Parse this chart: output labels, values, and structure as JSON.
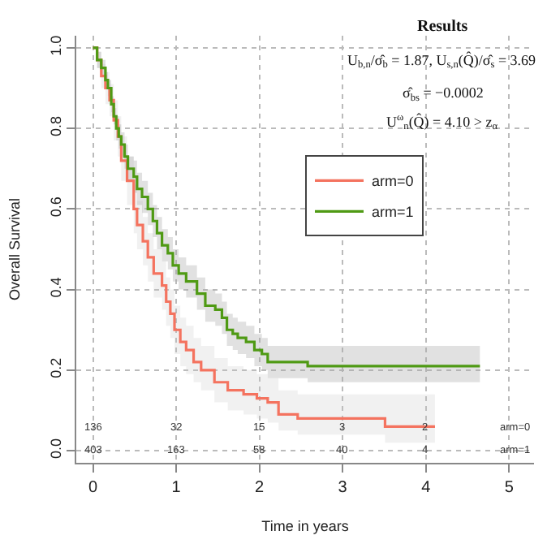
{
  "chart_data": {
    "type": "step",
    "xlabel": "Time in years",
    "ylabel": "Overall Survival",
    "xlim": [
      -0.2,
      5.3
    ],
    "xticks": [
      0,
      1,
      2,
      3,
      4,
      5
    ],
    "ylim": [
      -0.03,
      1.03
    ],
    "yticks": [
      {
        "value": 0,
        "label": "0.0"
      },
      0.2,
      0.4,
      0.6,
      0.8,
      {
        "value": 1,
        "label": "1.0"
      }
    ],
    "grid": true,
    "legend": "top right",
    "line_style": "solid",
    "marker": "none",
    "series": [
      {
        "name": "arm=0",
        "color": "#f4735f",
        "x": [
          0,
          0.05,
          0.1,
          0.15,
          0.2,
          0.25,
          0.3,
          0.34,
          0.41,
          0.49,
          0.53,
          0.6,
          0.66,
          0.73,
          0.83,
          0.88,
          0.93,
          0.98,
          1.05,
          1.12,
          1.21,
          1.3,
          1.46,
          1.62,
          1.81,
          1.97,
          2.1,
          2.23,
          2.46,
          3.51,
          4.11
        ],
        "values": [
          1.0,
          0.97,
          0.93,
          0.9,
          0.87,
          0.82,
          0.78,
          0.72,
          0.67,
          0.6,
          0.56,
          0.52,
          0.48,
          0.44,
          0.41,
          0.37,
          0.34,
          0.3,
          0.27,
          0.25,
          0.22,
          0.2,
          0.17,
          0.15,
          0.14,
          0.13,
          0.12,
          0.09,
          0.08,
          0.06,
          0.06
        ],
        "lower": [
          1.0,
          0.95,
          0.9,
          0.86,
          0.83,
          0.77,
          0.73,
          0.67,
          0.61,
          0.54,
          0.5,
          0.46,
          0.42,
          0.38,
          0.35,
          0.31,
          0.28,
          0.24,
          0.21,
          0.19,
          0.17,
          0.15,
          0.12,
          0.1,
          0.09,
          0.08,
          0.07,
          0.05,
          0.04,
          0.02,
          0.02
        ],
        "upper": [
          1.0,
          0.99,
          0.96,
          0.94,
          0.91,
          0.87,
          0.83,
          0.78,
          0.73,
          0.66,
          0.62,
          0.58,
          0.54,
          0.5,
          0.47,
          0.43,
          0.4,
          0.36,
          0.33,
          0.31,
          0.28,
          0.26,
          0.23,
          0.21,
          0.2,
          0.19,
          0.18,
          0.15,
          0.14,
          0.14,
          0.14
        ]
      },
      {
        "name": "arm=1",
        "color": "#4f9a14",
        "x": [
          0,
          0.05,
          0.1,
          0.15,
          0.18,
          0.22,
          0.25,
          0.28,
          0.31,
          0.34,
          0.38,
          0.42,
          0.49,
          0.53,
          0.59,
          0.66,
          0.72,
          0.77,
          0.83,
          0.9,
          0.96,
          1.03,
          1.12,
          1.25,
          1.35,
          1.47,
          1.55,
          1.61,
          1.68,
          1.74,
          1.84,
          1.94,
          2.03,
          2.1,
          2.58,
          4.65
        ],
        "values": [
          1.0,
          0.97,
          0.95,
          0.92,
          0.9,
          0.86,
          0.83,
          0.8,
          0.78,
          0.76,
          0.73,
          0.7,
          0.68,
          0.65,
          0.63,
          0.6,
          0.57,
          0.54,
          0.51,
          0.49,
          0.46,
          0.44,
          0.42,
          0.39,
          0.36,
          0.35,
          0.33,
          0.3,
          0.29,
          0.28,
          0.27,
          0.25,
          0.24,
          0.22,
          0.21,
          0.21
        ],
        "lower": [
          1.0,
          0.95,
          0.93,
          0.9,
          0.88,
          0.84,
          0.81,
          0.77,
          0.75,
          0.73,
          0.7,
          0.67,
          0.64,
          0.61,
          0.59,
          0.56,
          0.53,
          0.5,
          0.47,
          0.45,
          0.42,
          0.4,
          0.38,
          0.35,
          0.32,
          0.31,
          0.29,
          0.26,
          0.25,
          0.24,
          0.23,
          0.21,
          0.2,
          0.18,
          0.17,
          0.17
        ],
        "upper": [
          1.0,
          0.99,
          0.97,
          0.94,
          0.92,
          0.88,
          0.85,
          0.83,
          0.81,
          0.79,
          0.76,
          0.73,
          0.72,
          0.69,
          0.67,
          0.64,
          0.61,
          0.58,
          0.55,
          0.53,
          0.5,
          0.48,
          0.46,
          0.43,
          0.4,
          0.39,
          0.37,
          0.34,
          0.33,
          0.32,
          0.31,
          0.29,
          0.28,
          0.26,
          0.26,
          0.26
        ]
      }
    ],
    "annotations": [
      "Results",
      "U$_{b,n}$/σ̂$_{b}$ = 1.87, U$_{s,n}$(Q̂)/σ̂$_{s}$ = 3.69",
      "σ̂$_{bs}$ = −0.0002",
      "U$^{ω}$$_{n}$(Q̂) = 4.10 > z$_{α}$",
      "136",
      "32",
      "15",
      "3",
      "2",
      "arm=0",
      "403",
      "163",
      "58",
      "40",
      "4",
      "arm=1"
    ]
  }
}
